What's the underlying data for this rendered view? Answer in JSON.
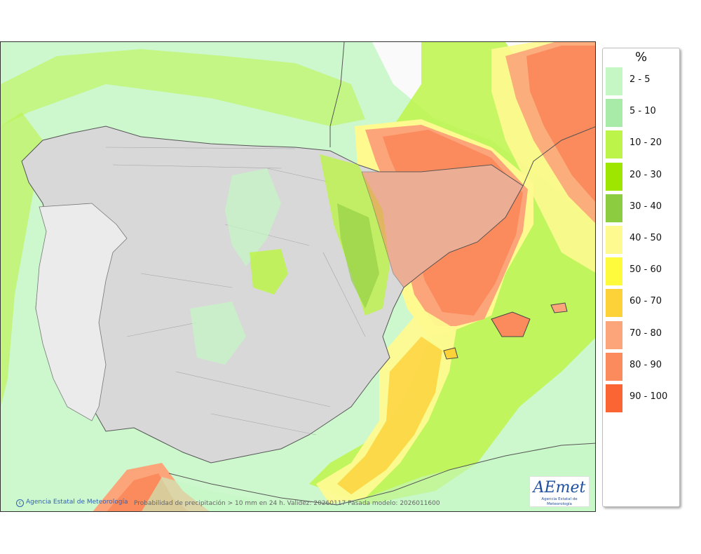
{
  "map": {
    "unit_label": "%",
    "credit": "Agencia Estatal de Meteorología",
    "caption": "Probabilidad de precipitación > 10 mm en 24 h. Validez: 20260117 Pasada modelo: 2026011600",
    "logo_text": "AEmet",
    "logo_subtext": "Agencia Estatal de Meteorología"
  },
  "legend": [
    {
      "label": "2 - 5",
      "color": "#c4f7c4"
    },
    {
      "label": "5 - 10",
      "color": "#a8eaa8"
    },
    {
      "label": "10 - 20",
      "color": "#bdf44a"
    },
    {
      "label": "20 - 30",
      "color": "#9ee600"
    },
    {
      "label": "30 - 40",
      "color": "#8ccc40"
    },
    {
      "label": "40 - 50",
      "color": "#fefa90"
    },
    {
      "label": "50 - 60",
      "color": "#fdfb3c"
    },
    {
      "label": "60 - 70",
      "color": "#fdd138"
    },
    {
      "label": "70 - 80",
      "color": "#fca47a"
    },
    {
      "label": "80 - 90",
      "color": "#fb8a5c"
    },
    {
      "label": "90 - 100",
      "color": "#fb6534"
    }
  ]
}
